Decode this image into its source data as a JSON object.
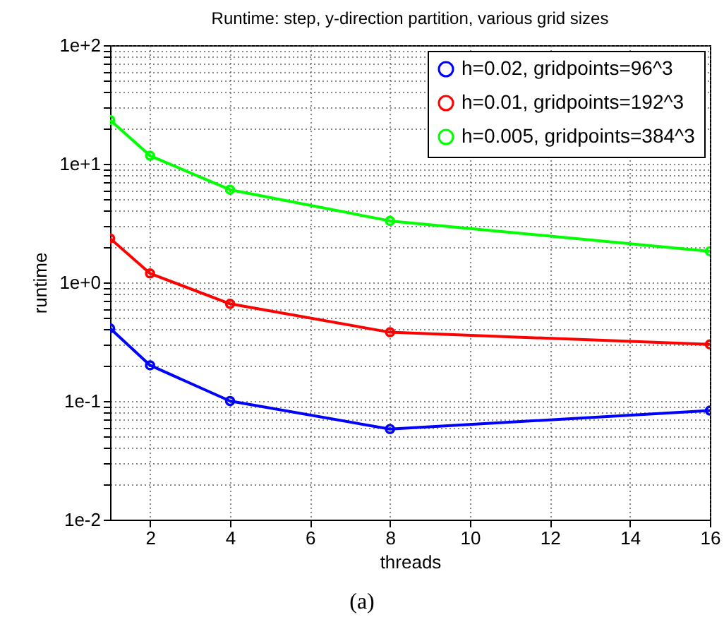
{
  "chart_data": {
    "type": "line",
    "title": "Runtime: step, y-direction partition, various grid sizes",
    "xlabel": "threads",
    "ylabel": "runtime",
    "x": [
      1,
      2,
      4,
      8,
      16
    ],
    "series": [
      {
        "name": "h=0.02,  gridpoints=96^3",
        "color": "#0000ff",
        "values": [
          0.41,
          0.2,
          0.1,
          0.058,
          0.083
        ]
      },
      {
        "name": "h=0.01,  gridpoints=192^3",
        "color": "#ff0000",
        "values": [
          2.35,
          1.19,
          0.66,
          0.38,
          0.3
        ]
      },
      {
        "name": "h=0.005, gridpoints=384^3",
        "color": "#00ff00",
        "values": [
          23.4,
          11.7,
          6.05,
          3.3,
          1.83
        ]
      }
    ],
    "log": "y",
    "xlim": [
      1,
      16
    ],
    "xticks": [
      2,
      4,
      6,
      8,
      10,
      12,
      14,
      16
    ],
    "ylim": [
      0.01,
      100
    ],
    "yticks": [
      {
        "value": 0.01,
        "label": "1e-2"
      },
      {
        "value": 0.02,
        "label": null
      },
      {
        "value": 0.03,
        "label": null
      },
      {
        "value": 0.04,
        "label": null
      },
      {
        "value": 0.05,
        "label": null
      },
      {
        "value": 0.06,
        "label": null
      },
      {
        "value": 0.07,
        "label": null
      },
      {
        "value": 0.08,
        "label": null
      },
      {
        "value": 0.09,
        "label": null
      },
      {
        "value": 0.1,
        "label": "1e-1"
      },
      {
        "value": 0.2,
        "label": null
      },
      {
        "value": 0.3,
        "label": null
      },
      {
        "value": 0.4,
        "label": null
      },
      {
        "value": 0.5,
        "label": null
      },
      {
        "value": 0.6,
        "label": null
      },
      {
        "value": 0.7,
        "label": null
      },
      {
        "value": 0.8,
        "label": null
      },
      {
        "value": 0.9,
        "label": null
      },
      {
        "value": 1,
        "label": "1e+0"
      },
      {
        "value": 2,
        "label": null
      },
      {
        "value": 3,
        "label": null
      },
      {
        "value": 4,
        "label": null
      },
      {
        "value": 5,
        "label": null
      },
      {
        "value": 6,
        "label": null
      },
      {
        "value": 7,
        "label": null
      },
      {
        "value": 8,
        "label": null
      },
      {
        "value": 9,
        "label": null
      },
      {
        "value": 10,
        "label": "1e+1"
      },
      {
        "value": 20,
        "label": null
      },
      {
        "value": 30,
        "label": null
      },
      {
        "value": 40,
        "label": null
      },
      {
        "value": 50,
        "label": null
      },
      {
        "value": 60,
        "label": null
      },
      {
        "value": 70,
        "label": null
      },
      {
        "value": 80,
        "label": null
      },
      {
        "value": 90,
        "label": null
      },
      {
        "value": 100,
        "label": "1e+2"
      }
    ],
    "grid": true,
    "legend": "top right",
    "marker": "circle",
    "line_style": "solid",
    "annotations": [
      "(a)"
    ]
  }
}
